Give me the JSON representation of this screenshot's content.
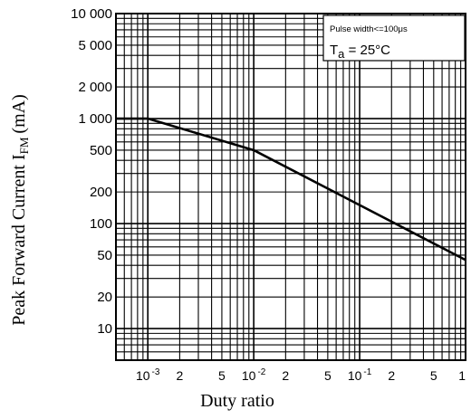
{
  "chart_data": {
    "type": "line",
    "x_scale": "log",
    "y_scale": "log",
    "xlim": [
      0.0005,
      1
    ],
    "ylim": [
      5,
      10000
    ],
    "grid": true,
    "xlabel": "Duty ratio",
    "ylabel": {
      "text": "Peak Forward Current I",
      "sub": "FM",
      "unit": "(mA)"
    },
    "y_ticks": [
      {
        "value": 10000,
        "label": "10 000"
      },
      {
        "value": 5000,
        "label": "5 000"
      },
      {
        "value": 2000,
        "label": "2 000"
      },
      {
        "value": 1000,
        "label": "1 000"
      },
      {
        "value": 500,
        "label": "500"
      },
      {
        "value": 200,
        "label": "200"
      },
      {
        "value": 100,
        "label": "100"
      },
      {
        "value": 50,
        "label": "50"
      },
      {
        "value": 20,
        "label": "20"
      },
      {
        "value": 10,
        "label": "10"
      }
    ],
    "x_ticks": [
      {
        "value": 0.001,
        "base": "10",
        "exp": "-3"
      },
      {
        "value": 0.002,
        "label": "2"
      },
      {
        "value": 0.005,
        "label": "5"
      },
      {
        "value": 0.01,
        "base": "10",
        "exp": "-2"
      },
      {
        "value": 0.02,
        "label": "2"
      },
      {
        "value": 0.05,
        "label": "5"
      },
      {
        "value": 0.1,
        "base": "10",
        "exp": "-1"
      },
      {
        "value": 0.2,
        "label": "2"
      },
      {
        "value": 0.5,
        "label": "5"
      },
      {
        "value": 1,
        "label": "1"
      }
    ],
    "series": [
      {
        "x": [
          0.0005,
          0.001,
          0.01,
          0.1,
          1
        ],
        "y": [
          1000,
          1000,
          500,
          150,
          45
        ]
      }
    ],
    "annotation": {
      "line1": "Pulse width<=100μs",
      "line2_prefix": "T",
      "line2_sub": "a",
      "line2_suffix": " = 25°C"
    }
  }
}
